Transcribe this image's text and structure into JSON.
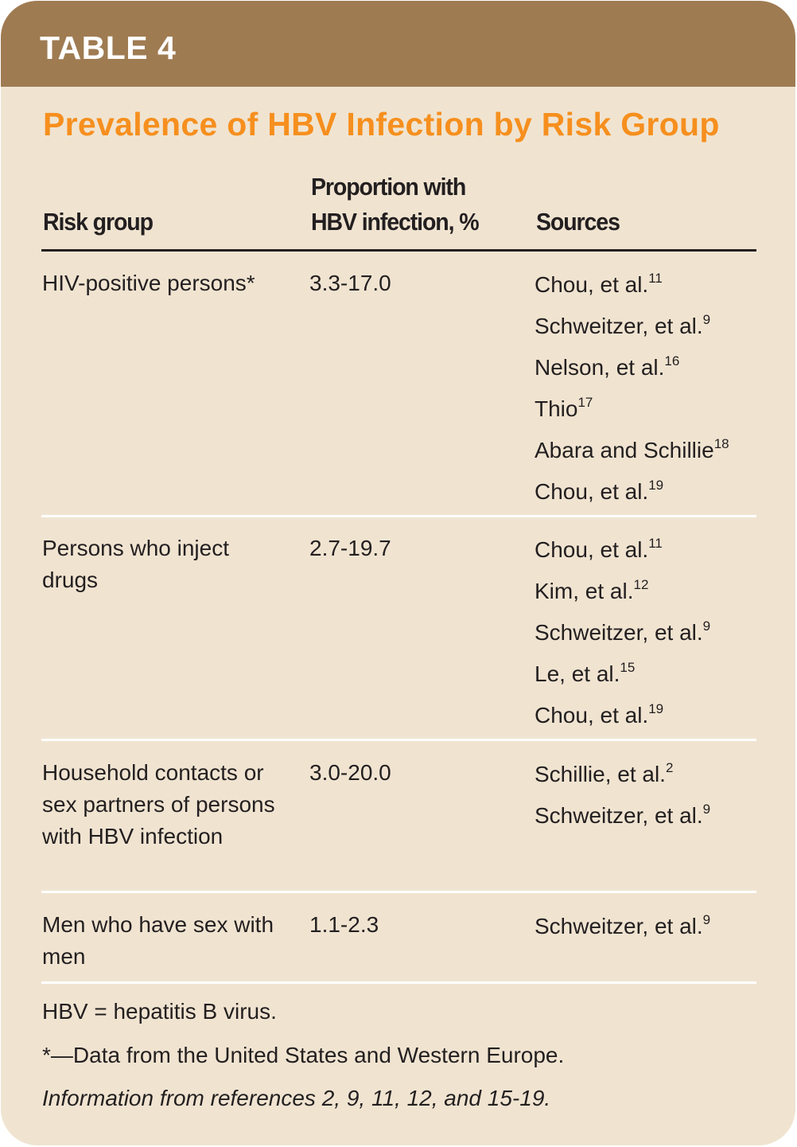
{
  "header": {
    "label": "TABLE 4"
  },
  "title": "Prevalence of HBV Infection by Risk Group",
  "colors": {
    "header_band": "#9f7b52",
    "background": "#f0e4d1",
    "title": "#f68f1e",
    "text": "#231f20"
  },
  "columns": {
    "risk_group": "Risk group",
    "proportion_line1": "Proportion with",
    "proportion_line2": "HBV infection, %",
    "sources": "Sources"
  },
  "rows": [
    {
      "group": "HIV-positive persons*",
      "proportion": "3.3-17.0",
      "sources": [
        {
          "name": "Chou, et al.",
          "ref": "11"
        },
        {
          "name": "Schweitzer, et al.",
          "ref": "9"
        },
        {
          "name": "Nelson, et al.",
          "ref": "16"
        },
        {
          "name": "Thio",
          "ref": "17"
        },
        {
          "name": "Abara and Schillie",
          "ref": "18"
        },
        {
          "name": "Chou, et al.",
          "ref": "19"
        }
      ]
    },
    {
      "group": "Persons who inject drugs",
      "proportion": "2.7-19.7",
      "sources": [
        {
          "name": "Chou, et al.",
          "ref": "11"
        },
        {
          "name": "Kim, et al.",
          "ref": "12"
        },
        {
          "name": "Schweitzer, et al.",
          "ref": "9"
        },
        {
          "name": "Le, et al.",
          "ref": "15"
        },
        {
          "name": "Chou, et al.",
          "ref": "19"
        }
      ]
    },
    {
      "group": "Household contacts or sex partners of persons with HBV infection",
      "proportion": "3.0-20.0",
      "sources": [
        {
          "name": "Schillie, et al.",
          "ref": "2"
        },
        {
          "name": "Schweitzer, et al.",
          "ref": "9"
        }
      ]
    },
    {
      "group": "Men who have sex with men",
      "proportion": "1.1-2.3",
      "sources": [
        {
          "name": "Schweitzer, et al.",
          "ref": "9"
        }
      ]
    }
  ],
  "footnotes": {
    "abbrev": "HBV = hepatitis B virus.",
    "asterisk": "*—Data from the United States and Western Europe.",
    "info": "Information from references 2, 9, 11, 12, and 15-19."
  }
}
